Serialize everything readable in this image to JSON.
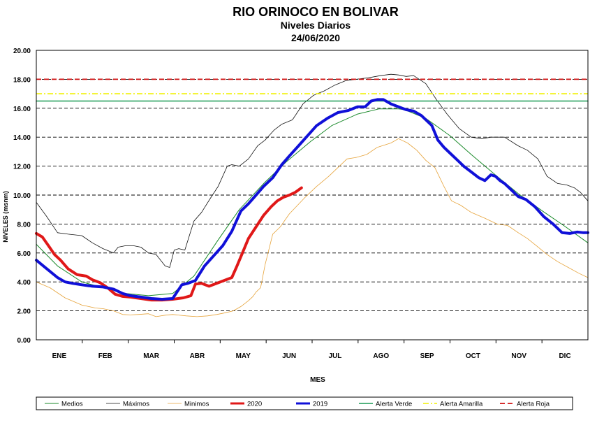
{
  "chart_data": {
    "type": "line",
    "title": "RIO ORINOCO EN BOLIVAR",
    "subtitle": "Niveles Diarios",
    "date": "24/06/2020",
    "xlabel": "MES",
    "ylabel": "NIVELES (msnm)",
    "ylim": [
      0,
      20
    ],
    "yticks": [
      "0.00",
      "2.00",
      "4.00",
      "6.00",
      "8.00",
      "10.00",
      "12.00",
      "14.00",
      "16.00",
      "18.00",
      "20.00"
    ],
    "categories": [
      "ENE",
      "FEB",
      "MAR",
      "ABR",
      "MAY",
      "JUN",
      "JUL",
      "AGO",
      "SEP",
      "OCT",
      "NOV",
      "DIC"
    ],
    "x_unit": "day of year",
    "xlim": [
      1,
      365
    ],
    "grid": true,
    "legend_position": "bottom",
    "series": [
      {
        "name": "Medios",
        "color": "#1a8a2a",
        "width": 1,
        "dash": "",
        "x": [
          1,
          15,
          31,
          45,
          60,
          75,
          91,
          105,
          121,
          135,
          152,
          166,
          182,
          196,
          213,
          227,
          240,
          244,
          258,
          274,
          288,
          305,
          319,
          335,
          349,
          365
        ],
        "y": [
          6.6,
          5.1,
          4.0,
          3.6,
          3.2,
          3.05,
          3.2,
          4.4,
          6.9,
          9.0,
          10.9,
          12.3,
          13.7,
          14.8,
          15.6,
          15.95,
          15.95,
          15.9,
          15.3,
          14.1,
          12.8,
          11.3,
          10.1,
          8.9,
          7.9,
          6.7
        ]
      },
      {
        "name": "Máximos",
        "color": "#111111",
        "width": 0.8,
        "dash": "",
        "x": [
          1,
          8,
          15,
          22,
          31,
          38,
          45,
          52,
          55,
          60,
          65,
          70,
          75,
          80,
          86,
          89,
          92,
          95,
          99,
          105,
          110,
          116,
          121,
          127,
          130,
          135,
          141,
          147,
          152,
          158,
          163,
          170,
          177,
          184,
          191,
          198,
          205,
          212,
          220,
          228,
          235,
          240,
          245,
          250,
          258,
          265,
          272,
          280,
          288,
          295,
          301,
          310,
          319,
          325,
          332,
          338,
          345,
          351,
          356,
          360,
          365
        ],
        "y": [
          9.5,
          8.5,
          7.4,
          7.3,
          7.2,
          6.7,
          6.3,
          6.0,
          6.4,
          6.5,
          6.5,
          6.4,
          6.0,
          5.9,
          5.1,
          5.0,
          6.2,
          6.3,
          6.2,
          8.2,
          8.8,
          9.8,
          10.6,
          12.0,
          12.1,
          12.0,
          12.5,
          13.4,
          13.8,
          14.5,
          14.9,
          15.2,
          16.3,
          16.9,
          17.2,
          17.6,
          17.9,
          18.0,
          18.1,
          18.25,
          18.35,
          18.3,
          18.2,
          18.25,
          17.7,
          16.6,
          15.6,
          14.6,
          14.0,
          13.9,
          14.0,
          14.0,
          13.4,
          13.1,
          12.5,
          11.3,
          10.8,
          10.7,
          10.5,
          10.2,
          9.6
        ]
      },
      {
        "name": "Minimos",
        "color": "#e6a33a",
        "width": 0.8,
        "dash": "",
        "x": [
          1,
          10,
          20,
          31,
          40,
          45,
          52,
          58,
          63,
          68,
          75,
          80,
          86,
          91,
          100,
          107,
          114,
          120,
          125,
          131,
          136,
          141,
          144,
          146,
          149,
          152,
          157,
          162,
          168,
          178,
          186,
          194,
          200,
          206,
          212,
          219,
          226,
          235,
          240,
          246,
          252,
          258,
          264,
          270,
          275,
          281,
          288,
          297,
          305,
          312,
          319,
          325,
          331,
          338,
          345,
          352,
          359,
          365
        ],
        "y": [
          4.0,
          3.6,
          2.9,
          2.4,
          2.2,
          2.15,
          2.0,
          1.75,
          1.72,
          1.75,
          1.8,
          1.6,
          1.7,
          1.75,
          1.65,
          1.6,
          1.65,
          1.75,
          1.85,
          2.0,
          2.3,
          2.7,
          3.0,
          3.3,
          3.6,
          5.2,
          7.3,
          7.8,
          8.7,
          9.8,
          10.6,
          11.3,
          11.9,
          12.5,
          12.6,
          12.8,
          13.3,
          13.6,
          13.9,
          13.6,
          13.1,
          12.4,
          11.9,
          10.6,
          9.6,
          9.3,
          8.8,
          8.4,
          8.0,
          7.9,
          7.4,
          7.0,
          6.5,
          5.9,
          5.4,
          5.0,
          4.6,
          4.3
        ]
      },
      {
        "name": "2020",
        "color": "#e01818",
        "width": 4,
        "dash": "",
        "x": [
          1,
          5,
          9,
          13,
          17,
          22,
          28,
          34,
          38,
          43,
          48,
          53,
          58,
          63,
          70,
          77,
          84,
          91,
          98,
          103,
          106,
          110,
          115,
          120,
          125,
          130,
          133,
          137,
          141,
          146,
          151,
          156,
          160,
          164,
          168,
          172,
          176
        ],
        "y": [
          7.35,
          7.1,
          6.5,
          5.9,
          5.5,
          4.9,
          4.5,
          4.4,
          4.15,
          3.95,
          3.6,
          3.15,
          3.0,
          2.95,
          2.85,
          2.75,
          2.75,
          2.8,
          2.9,
          3.05,
          3.85,
          3.9,
          3.7,
          3.9,
          4.1,
          4.3,
          5.0,
          6.0,
          7.0,
          7.8,
          8.6,
          9.2,
          9.6,
          9.85,
          10.0,
          10.2,
          10.5
        ]
      },
      {
        "name": "2019",
        "color": "#1010d8",
        "width": 4,
        "dash": "",
        "x": [
          1,
          8,
          15,
          20,
          25,
          31,
          38,
          45,
          52,
          58,
          63,
          70,
          77,
          84,
          91,
          97,
          101,
          106,
          112,
          118,
          124,
          130,
          136,
          141,
          146,
          151,
          157,
          163,
          168,
          174,
          180,
          186,
          193,
          200,
          207,
          213,
          218,
          222,
          226,
          230,
          235,
          240,
          245,
          250,
          255,
          262,
          266,
          270,
          274,
          279,
          283,
          288,
          293,
          297,
          301,
          304,
          307,
          310,
          314,
          319,
          324,
          330,
          336,
          342,
          348,
          353,
          358,
          362,
          365
        ],
        "y": [
          5.5,
          4.9,
          4.3,
          4.0,
          3.9,
          3.8,
          3.7,
          3.65,
          3.5,
          3.2,
          3.05,
          2.95,
          2.85,
          2.8,
          2.85,
          3.8,
          3.9,
          4.1,
          5.1,
          5.8,
          6.5,
          7.5,
          8.9,
          9.4,
          10.0,
          10.6,
          11.2,
          12.1,
          12.7,
          13.4,
          14.1,
          14.8,
          15.3,
          15.7,
          15.85,
          16.1,
          16.1,
          16.5,
          16.6,
          16.6,
          16.3,
          16.1,
          15.9,
          15.8,
          15.5,
          14.8,
          13.8,
          13.3,
          12.9,
          12.4,
          12.0,
          11.6,
          11.2,
          11.0,
          11.4,
          11.3,
          11.0,
          10.8,
          10.4,
          9.9,
          9.7,
          9.2,
          8.5,
          8.0,
          7.4,
          7.35,
          7.45,
          7.4,
          7.4
        ]
      },
      {
        "name": "Alerta Verde",
        "color": "#1a9a55",
        "width": 1.6,
        "dash": "",
        "x": [
          1,
          365
        ],
        "y": [
          16.5,
          16.5
        ]
      },
      {
        "name": "Alerta Amarilla",
        "color": "#f0f000",
        "width": 1.6,
        "dash": "8,3,2,3",
        "x": [
          1,
          365
        ],
        "y": [
          17.0,
          17.0
        ]
      },
      {
        "name": "Alerta Roja",
        "color": "#d01010",
        "width": 1.8,
        "dash": "7,4",
        "x": [
          1,
          365
        ],
        "y": [
          18.0,
          18.0
        ]
      }
    ]
  }
}
